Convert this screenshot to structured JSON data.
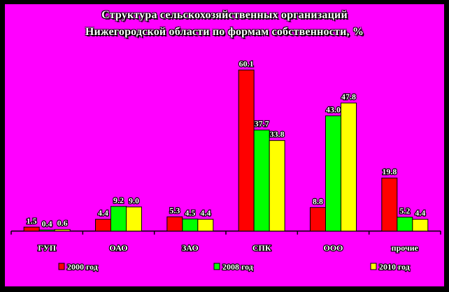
{
  "chart_data": {
    "type": "bar",
    "title_line1": "Структура сельскохозяйственных организаций",
    "title_line2": "Нижегородской области по формам собственности, %",
    "categories": [
      "ГУП",
      "ОАО",
      "ЗАО",
      "СПК",
      "ООО",
      "прочие"
    ],
    "series": [
      {
        "name": "2000 год",
        "color": "#ff0000",
        "values": [
          1.5,
          4.4,
          5.3,
          60.1,
          8.8,
          19.8
        ]
      },
      {
        "name": "2008 год",
        "color": "#00ff00",
        "values": [
          0.4,
          9.2,
          4.5,
          37.7,
          43.0,
          5.2
        ]
      },
      {
        "name": "2010 год",
        "color": "#ffff00",
        "values": [
          0.6,
          9.0,
          4.4,
          33.8,
          47.8,
          4.4
        ]
      }
    ],
    "value_labels": [
      [
        "1.5",
        "4.4",
        "5.3",
        "60.1",
        "8.8",
        "19.8"
      ],
      [
        "0.4",
        "9.2",
        "4.5",
        "37.7",
        "43.0",
        "5.2"
      ],
      [
        "0.6",
        "9.0",
        "4.4",
        "33.8",
        "47.8",
        "4.4"
      ]
    ],
    "ylim": [
      0,
      60.1
    ],
    "grid": false,
    "legend_position": "bottom",
    "background": "#ff00ff"
  }
}
